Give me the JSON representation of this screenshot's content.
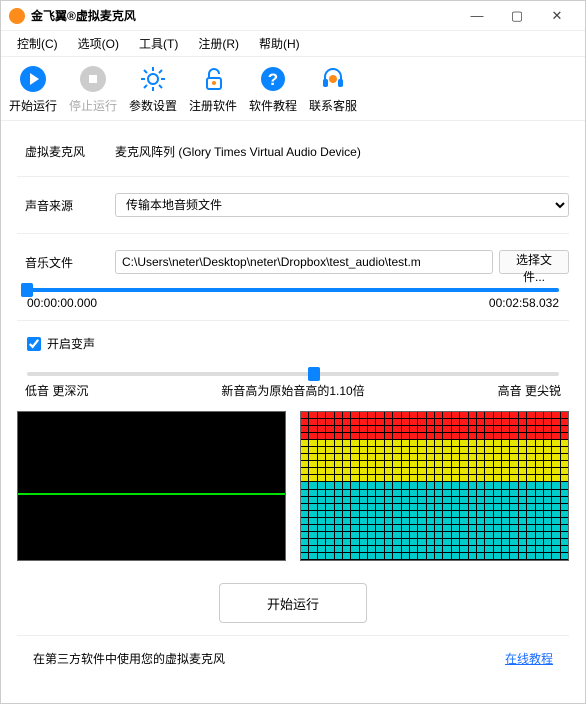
{
  "window": {
    "title": "金飞翼®虚拟麦克风"
  },
  "menu": {
    "control": "控制(C)",
    "options": "选项(O)",
    "tools": "工具(T)",
    "register": "注册(R)",
    "help": "帮助(H)"
  },
  "toolbar": {
    "start": "开始运行",
    "stop": "停止运行",
    "settings": "参数设置",
    "register": "注册软件",
    "tutorial": "软件教程",
    "support": "联系客服"
  },
  "form": {
    "virtual_mic_label": "虚拟麦克风",
    "virtual_mic_value": "麦克风阵列 (Glory Times Virtual Audio Device)",
    "source_label": "声音来源",
    "source_value": "传输本地音频文件",
    "file_label": "音乐文件",
    "file_value": "C:\\Users\\neter\\Desktop\\neter\\Dropbox\\test_audio\\test.m",
    "file_button": "选择文件..."
  },
  "playback": {
    "current_time": "00:00:00.000",
    "total_time": "00:02:58.032",
    "position_pct": 0
  },
  "pitch": {
    "checkbox_label": "开启变声",
    "checked": true,
    "low_label": "低音 更深沉",
    "center_label": "新音高为原始音高的1.10倍",
    "high_label": "高音 更尖锐",
    "position_pct": 54
  },
  "spectrum": {
    "columns": 32,
    "rows": 21,
    "red_rows": 4,
    "yellow_rows": 6,
    "cyan_rows": 11,
    "colors": {
      "red": "#ff1a1a",
      "yellow": "#e6e600",
      "cyan": "#00cccc"
    }
  },
  "big_button": "开始运行",
  "footer": {
    "hint": "在第三方软件中使用您的虚拟麦克风",
    "link": "在线教程"
  },
  "colors": {
    "accent": "#0a84ff",
    "waveform": "#00e000",
    "viz_bg": "#000000"
  }
}
